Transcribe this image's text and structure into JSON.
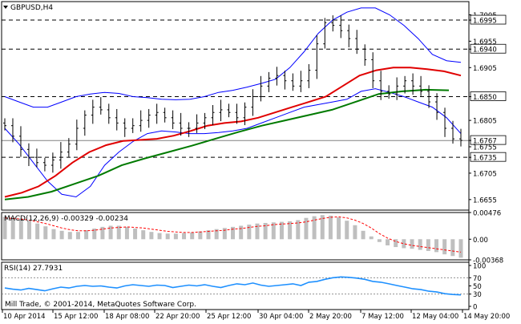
{
  "window": {
    "symbol_title": "GBPUSD,H4",
    "dropdown_icon": "triangle-down-icon",
    "copyright": "Mill Trade, © 2001-2014, MetaQuotes Software Corp."
  },
  "colors": {
    "price": "#000000",
    "bollinger": "#0000ff",
    "ma_red": "#e00000",
    "ma_green": "#007a00",
    "macd_hist": "#bfbfbf",
    "macd_signal": "#ff0000",
    "rsi": "#1e90ff",
    "level_line": "#000000",
    "current_price_line": "#000000"
  },
  "chart_data": [
    {
      "type": "candlestick",
      "title": "GBPUSD,H4",
      "ylim": [
        1.6635,
        1.703
      ],
      "y_tick_labels": [
        "1.7005",
        "1.6995",
        "1.6955",
        "1.6940",
        "1.6905",
        "1.6850",
        "1.6805",
        "1.6767",
        "1.6755",
        "1.6735",
        "1.6705",
        "1.6655"
      ],
      "x_tick_labels": [
        "10 Apr 2014",
        "15 Apr 12:00",
        "18 Apr 08:00",
        "22 Apr 20:00",
        "25 Apr 12:00",
        "30 Apr 04:00",
        "2 May 20:00",
        "7 May 12:00",
        "12 May 04:00",
        "14 May 20:00"
      ],
      "horizontal_levels": [
        1.6995,
        1.694,
        1.685,
        1.6735
      ],
      "highlighted_levels": [
        "1.6995",
        "1.6940",
        "1.6850",
        "1.6735"
      ],
      "current_price": 1.6767,
      "current_price_label": "1.6767",
      "close_series": [
        1.6795,
        1.6775,
        1.675,
        1.6735,
        1.6725,
        1.672,
        1.673,
        1.6745,
        1.676,
        1.679,
        1.6815,
        1.683,
        1.6825,
        1.681,
        1.68,
        1.679,
        1.6795,
        1.6805,
        1.6815,
        1.682,
        1.681,
        1.68,
        1.679,
        1.679,
        1.68,
        1.681,
        1.682,
        1.6825,
        1.682,
        1.681,
        1.683,
        1.685,
        1.687,
        1.6885,
        1.689,
        1.688,
        1.687,
        1.688,
        1.69,
        1.695,
        1.699,
        1.6985,
        1.6975,
        1.696,
        1.694,
        1.692,
        1.688,
        1.686,
        1.6855,
        1.687,
        1.688,
        1.687,
        1.686,
        1.684,
        1.682,
        1.679,
        1.677,
        1.6767
      ],
      "series": [
        {
          "name": "Bollinger Bands",
          "upper": [
            1.685,
            1.684,
            1.683,
            1.683,
            1.684,
            1.685,
            1.6855,
            1.6858,
            1.6856,
            1.685,
            1.6848,
            1.6845,
            1.6844,
            1.6845,
            1.685,
            1.6858,
            1.6862,
            1.6868,
            1.6875,
            1.6883,
            1.6905,
            1.6935,
            1.697,
            1.6995,
            1.701,
            1.7018,
            1.7018,
            1.7005,
            1.6985,
            1.696,
            1.693,
            1.6918,
            1.6915
          ],
          "lower": [
            1.679,
            1.676,
            1.6725,
            1.669,
            1.6665,
            1.666,
            1.668,
            1.672,
            1.6745,
            1.6765,
            1.678,
            1.6785,
            1.6783,
            1.678,
            1.678,
            1.6782,
            1.6785,
            1.679,
            1.68,
            1.681,
            1.682,
            1.683,
            1.6835,
            1.684,
            1.6845,
            1.686,
            1.6865,
            1.6858,
            1.685,
            1.684,
            1.683,
            1.681,
            1.678
          ]
        },
        {
          "name": "Moving Average (red)",
          "values": [
            1.666,
            1.6668,
            1.668,
            1.67,
            1.6725,
            1.6745,
            1.6758,
            1.6766,
            1.6768,
            1.677,
            1.6776,
            1.6785,
            1.6795,
            1.68,
            1.6803,
            1.681,
            1.682,
            1.683,
            1.684,
            1.685,
            1.687,
            1.689,
            1.69,
            1.6905,
            1.6905,
            1.6902,
            1.6898,
            1.689
          ]
        },
        {
          "name": "Moving Average (green)",
          "values": [
            1.6655,
            1.666,
            1.667,
            1.6685,
            1.67,
            1.672,
            1.6733,
            1.6745,
            1.6757,
            1.677,
            1.6783,
            1.6795,
            1.6805,
            1.6815,
            1.6825,
            1.684,
            1.6855,
            1.686,
            1.6863,
            1.6862
          ]
        }
      ]
    },
    {
      "type": "bar",
      "indicator_label": "MACD(12,26,9) -0.00329 -0.00234",
      "ylim": [
        -0.00368,
        0.00476
      ],
      "y_tick_labels": [
        "0.00476",
        "0.00",
        "-0.00368"
      ],
      "histogram": [
        0.004,
        0.0039,
        0.0037,
        0.0033,
        0.0028,
        0.0023,
        0.0018,
        0.0015,
        0.0013,
        0.0013,
        0.0016,
        0.0019,
        0.0022,
        0.0024,
        0.0024,
        0.0022,
        0.0019,
        0.0016,
        0.0013,
        0.0011,
        0.001,
        0.001,
        0.0011,
        0.0012,
        0.0014,
        0.0016,
        0.0018,
        0.002,
        0.0022,
        0.0024,
        0.0026,
        0.0028,
        0.0029,
        0.003,
        0.0031,
        0.0032,
        0.0034,
        0.0038,
        0.0041,
        0.0043,
        0.0042,
        0.0039,
        0.0033,
        0.0025,
        0.0015,
        0.0005,
        -0.0005,
        -0.0011,
        -0.0014,
        -0.0016,
        -0.0017,
        -0.0019,
        -0.0021,
        -0.0023,
        -0.0027,
        -0.003,
        -0.0033
      ],
      "signal": [
        0.0038,
        0.0037,
        0.0036,
        0.0034,
        0.0031,
        0.0028,
        0.0024,
        0.002,
        0.0017,
        0.0015,
        0.0015,
        0.0016,
        0.0018,
        0.002,
        0.0021,
        0.0022,
        0.0021,
        0.002,
        0.0018,
        0.0016,
        0.0014,
        0.0013,
        0.0012,
        0.0012,
        0.0013,
        0.0014,
        0.0015,
        0.0016,
        0.0018,
        0.0019,
        0.0021,
        0.0023,
        0.0024,
        0.0026,
        0.0027,
        0.0028,
        0.0029,
        0.0031,
        0.0034,
        0.0037,
        0.0039,
        0.004,
        0.0038,
        0.0034,
        0.0028,
        0.002,
        0.001,
        0.0002,
        -0.0004,
        -0.0008,
        -0.0011,
        -0.0013,
        -0.0015,
        -0.0017,
        -0.0019,
        -0.0021,
        -0.0023
      ]
    },
    {
      "type": "line",
      "indicator_label": "RSI(14) 27.7931",
      "ylim": [
        0,
        100
      ],
      "y_tick_labels": [
        "100",
        "70",
        "50",
        "30",
        "0"
      ],
      "levels": [
        70,
        30
      ],
      "values": [
        45,
        42,
        40,
        44,
        41,
        38,
        43,
        47,
        45,
        49,
        51,
        49,
        50,
        47,
        45,
        50,
        53,
        51,
        49,
        52,
        51,
        46,
        49,
        52,
        50,
        53,
        49,
        46,
        51,
        55,
        53,
        57,
        52,
        49,
        51,
        53,
        55,
        51,
        59,
        61,
        66,
        70,
        72,
        71,
        69,
        66,
        61,
        59,
        55,
        51,
        47,
        43,
        41,
        37,
        35,
        31,
        29,
        28
      ]
    }
  ]
}
